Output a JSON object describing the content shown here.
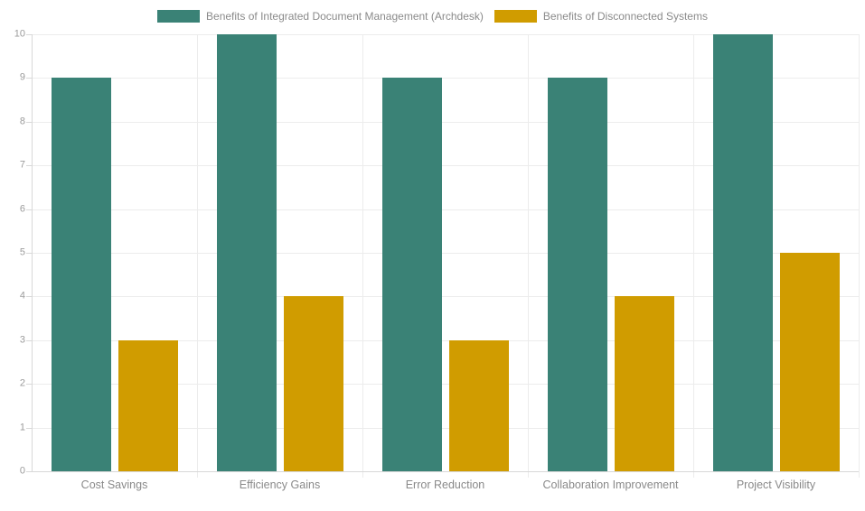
{
  "chart_data": {
    "type": "bar",
    "title": "",
    "xlabel": "",
    "ylabel": "",
    "categories": [
      "Cost Savings",
      "Efficiency Gains",
      "Error Reduction",
      "Collaboration Improvement",
      "Project Visibility"
    ],
    "series": [
      {
        "name": "Benefits of Integrated Document Management (Archdesk)",
        "color": "#3A8276",
        "values": [
          9,
          10,
          9,
          9,
          10
        ]
      },
      {
        "name": "Benefits of Disconnected Systems",
        "color": "#D09C00",
        "values": [
          3,
          4,
          3,
          4,
          5
        ]
      }
    ],
    "ylim": [
      0,
      10
    ],
    "y_ticks": [
      0,
      1,
      2,
      3,
      4,
      5,
      6,
      7,
      8,
      9,
      10
    ],
    "grid": true,
    "legend_position": "top"
  },
  "colors": {
    "background": "#FFFFFF",
    "gridline": "#ECECEC",
    "axis": "#D8D8D8",
    "y_tick_text": "#9B9B9B",
    "x_label_text": "#8A8A8A",
    "legend_text": "#8A8A8A"
  }
}
